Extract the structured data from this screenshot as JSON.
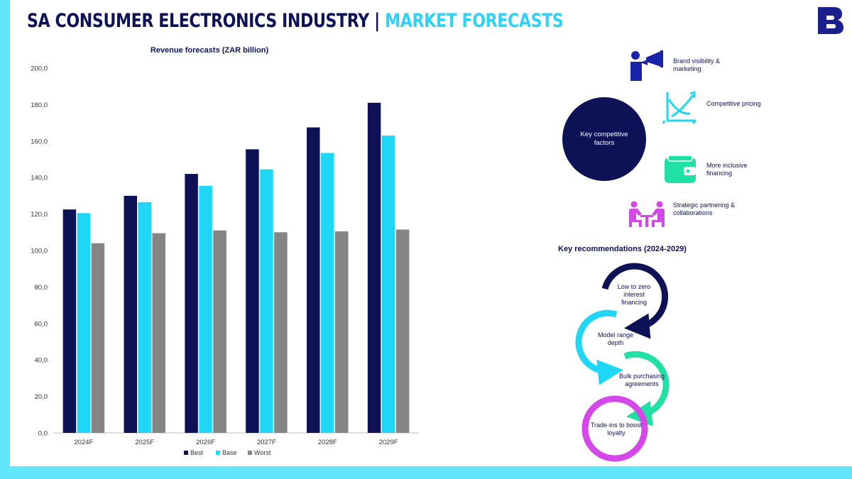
{
  "header": {
    "title_main": "SA CONSUMER ELECTRONICS INDUSTRY",
    "separator": "|",
    "title_accent": "MARKET FORECASTS",
    "logo_letter": "B"
  },
  "colors": {
    "navy": "#0d1257",
    "cyan": "#1fd6f5",
    "grey": "#858585",
    "accent_bar": "#62e6fb",
    "green": "#20e0a4",
    "magenta": "#d447e8"
  },
  "chart_data": {
    "type": "bar",
    "title": "Revenue forecasts (ZAR billion)",
    "categories": [
      "2024F",
      "2025F",
      "2026F",
      "2027F",
      "2028F",
      "2029F"
    ],
    "series": [
      {
        "name": "Best",
        "color": "#0d1257",
        "values": [
          122.5,
          130.0,
          142.0,
          155.5,
          167.5,
          181.0
        ]
      },
      {
        "name": "Base",
        "color": "#1fd6f5",
        "values": [
          120.5,
          126.5,
          135.5,
          144.5,
          153.5,
          163.0
        ]
      },
      {
        "name": "Worst",
        "color": "#858585",
        "values": [
          104.0,
          109.5,
          111.0,
          110.0,
          110.5,
          111.5
        ]
      }
    ],
    "yticks": [
      "0,0",
      "20,0",
      "40,0",
      "60,0",
      "80,0",
      "100,0",
      "120,0",
      "140,0",
      "160,0",
      "180,0",
      "200,0"
    ],
    "ylim": [
      0,
      200
    ],
    "xlabel": "",
    "ylabel": "",
    "legend_position": "bottom"
  },
  "factors": {
    "center_label": "Key competitive factors",
    "items": [
      {
        "icon": "megaphone-person-icon",
        "label": "Brand visibility & marketing"
      },
      {
        "icon": "price-graph-icon",
        "label": "Competitive pricing"
      },
      {
        "icon": "wallet-icon",
        "label": "More inclusive financing"
      },
      {
        "icon": "meeting-people-icon",
        "label": "Strategic partnering & collaborations"
      }
    ]
  },
  "recommendations": {
    "title": "Key recommendations (2024-2029)",
    "items": [
      {
        "label": "Low to zero interest financing",
        "color": "#0d1257"
      },
      {
        "label": "Model range depth",
        "color": "#1fd6f5"
      },
      {
        "label": "Bulk purchasing agreements",
        "color": "#20e0a4"
      },
      {
        "label": "Trade-ins to boost loyalty",
        "color": "#d447e8"
      }
    ]
  }
}
